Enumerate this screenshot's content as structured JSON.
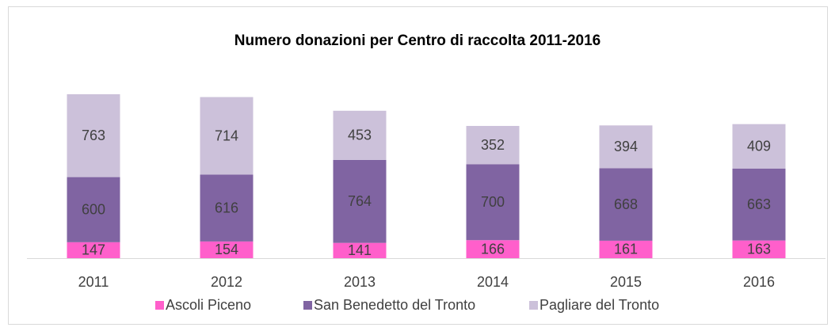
{
  "chart_data": {
    "type": "stacked_bar",
    "title": "Numero donazioni per Centro di raccolta 2011-2016",
    "categories": [
      "2011",
      "2012",
      "2013",
      "2014",
      "2015",
      "2016"
    ],
    "series": [
      {
        "name": "Ascoli Piceno",
        "color": "#ff5fcb",
        "values": [
          147,
          154,
          141,
          166,
          161,
          163
        ]
      },
      {
        "name": "San Benedetto del Tronto",
        "color": "#8064a2",
        "values": [
          600,
          616,
          764,
          700,
          668,
          663
        ]
      },
      {
        "name": "Pagliare del Tronto",
        "color": "#ccc1da",
        "values": [
          763,
          714,
          453,
          352,
          394,
          409
        ]
      }
    ],
    "legend": "bottom"
  }
}
